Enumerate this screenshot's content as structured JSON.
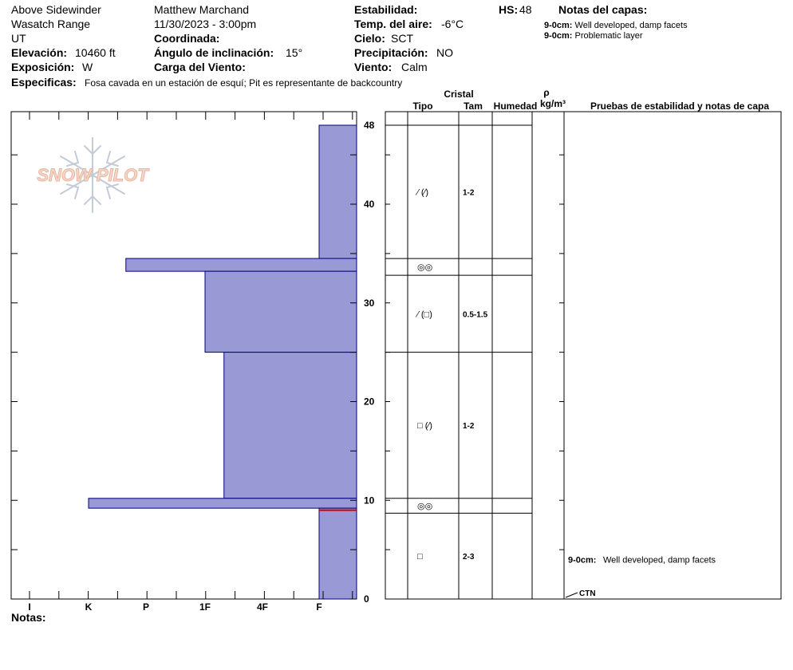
{
  "header": {
    "location": "Above Sidewinder",
    "range": "Wasatch Range",
    "state": "UT",
    "elevation_label": "Elevación:",
    "elevation_value": "10460 ft",
    "aspect_label": "Exposición:",
    "aspect_value": "W",
    "observer": "Matthew Marchand",
    "datetime": "11/30/2023 - 3:00pm",
    "coord_label": "Coordinada:",
    "slope_label": "Ángulo de inclinación:",
    "slope_value": "15°",
    "wind_load_label": "Carga del Viento:",
    "stability_label": "Estabilidad:",
    "air_temp_label": "Temp. del aire:",
    "air_temp_value": "-6°C",
    "sky_label": "Cielo:",
    "sky_value": "SCT",
    "precip_label": "Precipitación:",
    "precip_value": "NO",
    "wind_label": "Viento:",
    "wind_value": "Calm",
    "hs_label": "HS:",
    "hs_value": "48",
    "layer_notes_title": "Notas del capas:",
    "layer_notes": [
      {
        "range": "9-0cm:",
        "text": "Well developed, damp facets"
      },
      {
        "range": "9-0cm:",
        "text": "Problematic layer"
      }
    ],
    "specifics_label": "Especificas:",
    "specifics_value": "Fosa cavada en un estación de esquí; Pit es representante de backcountry"
  },
  "logo_text": "SNOW PILOT",
  "columns": {
    "crystal": "Cristal",
    "type": "Tipo",
    "size": "Tam",
    "moisture": "Humedad",
    "rho": "ρ",
    "density_unit": "kg/m³",
    "tests": "Pruebas de estabilidad y notas de capa"
  },
  "layers": [
    {
      "top": 48,
      "bottom": 34.5,
      "type": "⁄ (⁄)",
      "size": "1-2"
    },
    {
      "top": 34.5,
      "bottom": 32.8,
      "type": "◎◎",
      "size": ""
    },
    {
      "top": 32.8,
      "bottom": 25,
      "type": "⁄ (□)",
      "size": "0.5-1.5"
    },
    {
      "top": 25,
      "bottom": 10.2,
      "type": "□ (⁄)",
      "size": "1-2"
    },
    {
      "top": 10.2,
      "bottom": 8.7,
      "type": "◎◎",
      "size": ""
    },
    {
      "top": 8.7,
      "bottom": 0,
      "type": "□",
      "size": "2-3"
    }
  ],
  "test_notes": [
    {
      "range": "9-0cm:",
      "text": "Well developed, damp facets",
      "depth": 4
    }
  ],
  "test_result": {
    "label": "CTN",
    "depth": 0
  },
  "notes_label": "Notas:",
  "chart_data": {
    "type": "bar",
    "orientation": "horizontal",
    "ylabel": "",
    "ylim": [
      0,
      48
    ],
    "yticks": [
      0,
      10,
      20,
      30,
      40,
      48
    ],
    "xticks": [
      "I",
      "K",
      "P",
      "1F",
      "4F",
      "F"
    ],
    "hardness_scale_note": "value is hardness index on I..F axis",
    "layers": [
      {
        "top": 48,
        "bottom": 34.5,
        "hardness": "F"
      },
      {
        "top": 34.5,
        "bottom": 33.2,
        "hardness": "P+"
      },
      {
        "top": 33.2,
        "bottom": 25,
        "hardness": "4F"
      },
      {
        "top": 25,
        "bottom": 10.2,
        "hardness": "4F+"
      },
      {
        "top": 10.2,
        "bottom": 9.2,
        "hardness": "P"
      },
      {
        "top": 9.2,
        "bottom": 0,
        "hardness": "F"
      }
    ],
    "hardness_values": [
      6,
      2.65,
      4.0,
      4.33,
      2.0,
      6
    ],
    "problem_layer_depth": 9,
    "colors": {
      "bar": "#9999d6",
      "bar_edge": "#000080",
      "problem": "#cc0000"
    }
  }
}
